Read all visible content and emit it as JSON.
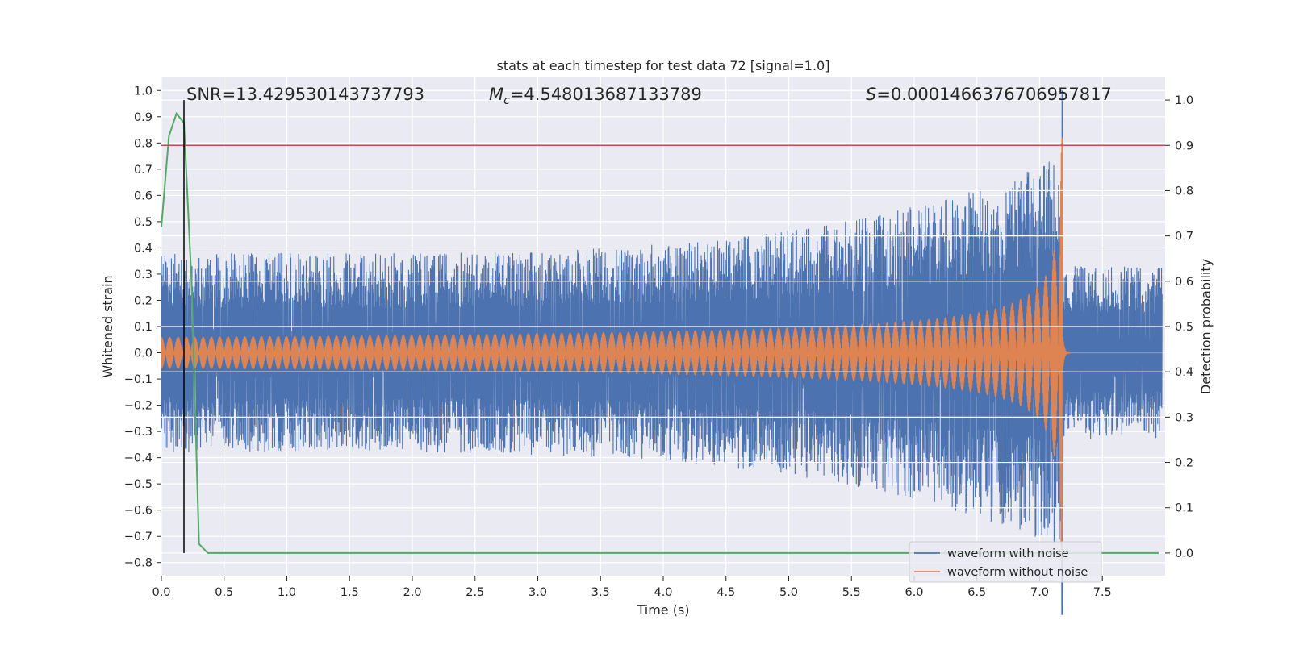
{
  "chart_data": {
    "type": "line",
    "title": "stats at each timestep for test data 72 [signal=1.0]",
    "xlabel": "Time (s)",
    "ylabel": "Whitened strain",
    "y2label": "Detection probability",
    "xlim": [
      0.0,
      8.0
    ],
    "ylim": [
      -0.85,
      1.05
    ],
    "y2lim": [
      -0.05,
      1.05
    ],
    "xticks": [
      "0.0",
      "0.5",
      "1.0",
      "1.5",
      "2.0",
      "2.5",
      "3.0",
      "3.5",
      "4.0",
      "4.5",
      "5.0",
      "5.5",
      "6.0",
      "6.5",
      "7.0",
      "7.5"
    ],
    "yticks": [
      "1.0",
      "0.9",
      "0.8",
      "0.7",
      "0.6",
      "0.5",
      "0.4",
      "0.3",
      "0.2",
      "0.1",
      "0.0",
      "−0.1",
      "−0.2",
      "−0.3",
      "−0.4",
      "−0.5",
      "−0.6",
      "−0.7",
      "−0.8"
    ],
    "y2ticks": [
      "1.0",
      "0.9",
      "0.8",
      "0.7",
      "0.6",
      "0.5",
      "0.4",
      "0.3",
      "0.2",
      "0.1",
      "0.0"
    ],
    "grid": true,
    "legend_position": "lower right",
    "annotations": {
      "snr": "SNR=13.429530143737793",
      "mc_symbol": "M",
      "mc_sub": "c",
      "mc_value": "=4.548013687133789",
      "s_symbol": "S",
      "s_value": "=0.0001466376706957817"
    },
    "merger_time": 7.18,
    "marker_time": 0.18,
    "threshold_probability": 0.9,
    "series": [
      {
        "name": "waveform with noise",
        "color": "#4c72b0",
        "description_envelope": {
          "pre_merger_amplitude_start": 0.38,
          "pre_merger_amplitude_peak": 0.75,
          "peak_value": 1.0,
          "post_merger_amplitude": 0.33,
          "end_time": 7.18
        }
      },
      {
        "name": "waveform without noise",
        "color": "#dd8452",
        "description_envelope": {
          "amplitude_start": 0.06,
          "amplitude_peak": 0.82,
          "end_time": 7.18
        }
      },
      {
        "name": "",
        "color": "#55a868",
        "axis": "right",
        "x": [
          0.0,
          0.06,
          0.12,
          0.18,
          0.24,
          0.3,
          0.37,
          7.95
        ],
        "y": [
          0.72,
          0.92,
          0.97,
          0.95,
          0.6,
          0.02,
          0.0,
          0.0
        ]
      }
    ],
    "threshold_color": "#c44e52",
    "marker_color": "#000000"
  }
}
